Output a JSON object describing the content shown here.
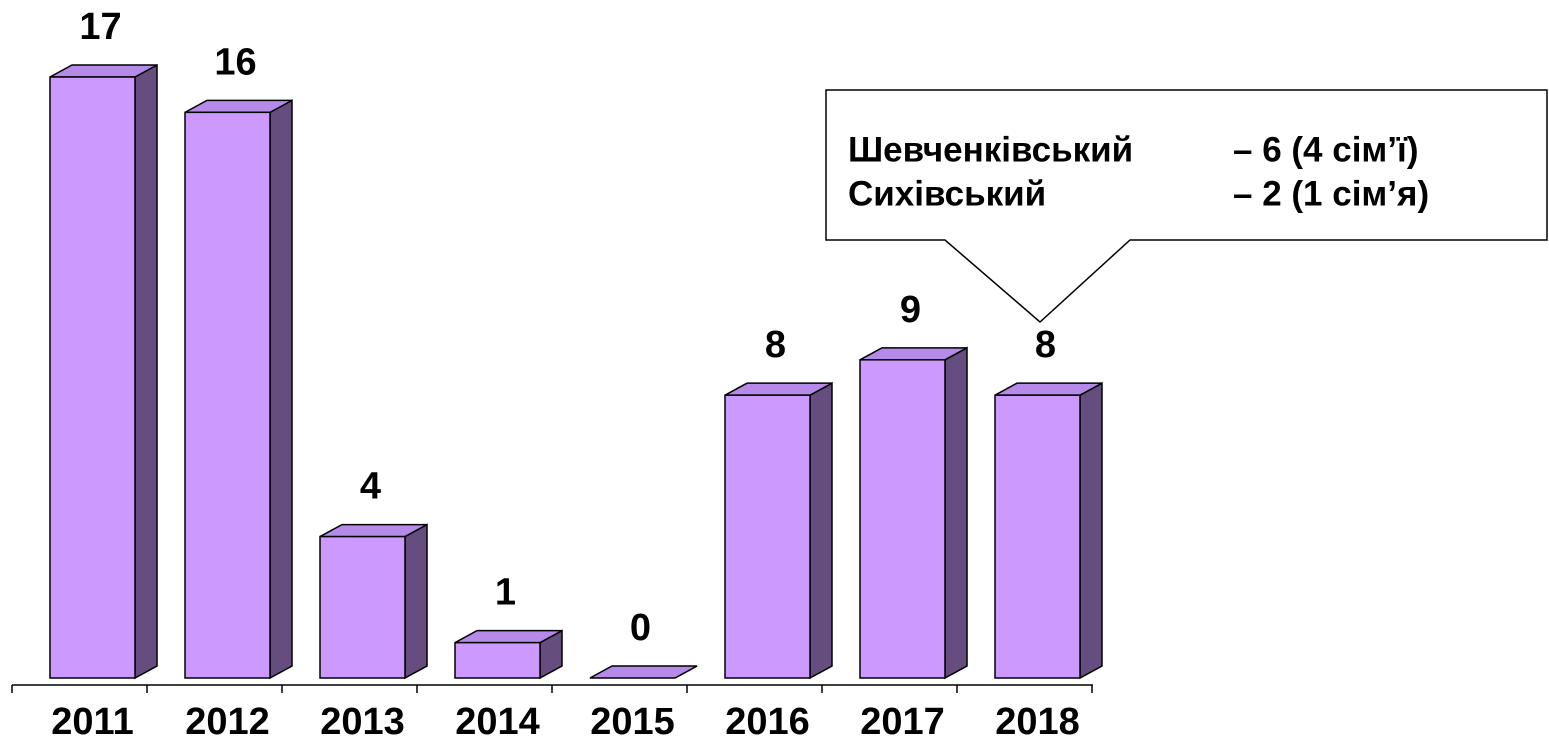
{
  "chart_data": {
    "type": "bar3d",
    "categories": [
      "2011",
      "2012",
      "2013",
      "2014",
      "2015",
      "2016",
      "2017",
      "2018"
    ],
    "values": [
      17,
      16,
      4,
      1,
      0,
      8,
      9,
      8
    ],
    "colors": {
      "front": "#cc99ff",
      "side": "#664d80",
      "top": "#b58ae8"
    },
    "annotation": {
      "lines": [
        {
          "name": "Шевченківський",
          "detail": "– 6 (4 сім’ї)"
        },
        {
          "name": "Сихівський",
          "detail": "– 2 (1 сім’я)"
        }
      ]
    }
  }
}
